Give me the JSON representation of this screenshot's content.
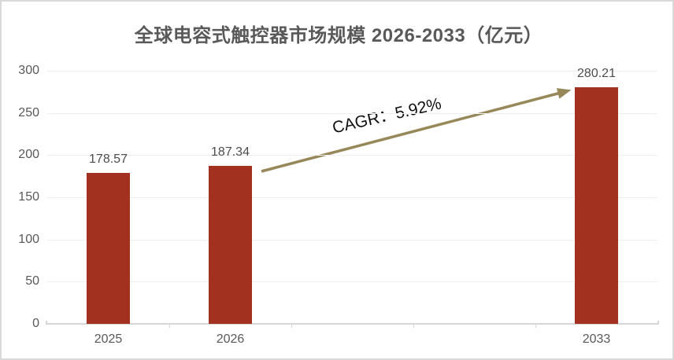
{
  "chart_data": {
    "type": "bar",
    "title": "全球电容式触控器市场规模 2026-2033（亿元）",
    "categories": [
      "2025",
      "2026",
      "2033"
    ],
    "values": [
      178.57,
      187.34,
      280.21
    ],
    "value_labels": [
      "178.57",
      "187.34",
      "280.21"
    ],
    "xlabel": "",
    "ylabel": "",
    "ylim": [
      0,
      300
    ],
    "yticks": [
      0,
      50,
      100,
      150,
      200,
      250,
      300
    ],
    "grid": true,
    "legend": "none",
    "category_slots": [
      0,
      1,
      4
    ],
    "total_slots": 5,
    "annotation": {
      "text": "CAGR：5.92%",
      "from_category": "2026",
      "to_category": "2033"
    },
    "colors": {
      "bar": "#A33120",
      "arrow": "#97885A",
      "title_text": "#595959",
      "axis_text": "#595959",
      "value_text": "#4D4D4D",
      "annotation_text": "#111111",
      "gridline": "#EFEFEF",
      "axis_line": "#D6D6D6",
      "border": "#D9D9D9",
      "background": "#FFFFFF"
    }
  }
}
